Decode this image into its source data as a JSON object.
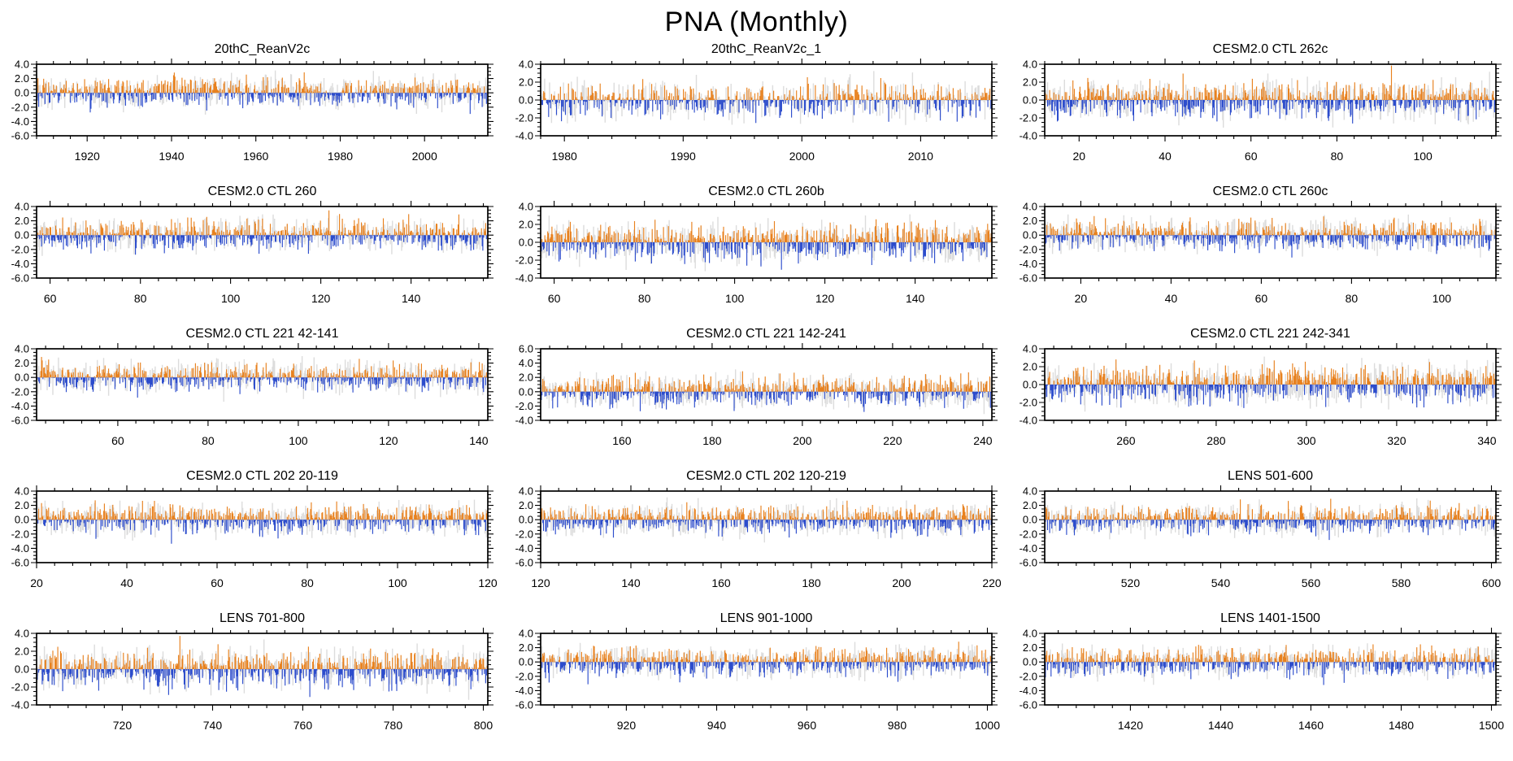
{
  "page_title": "PNA (Monthly)",
  "style": {
    "positive_color": "#e8811e",
    "negative_color": "#2c4ccc",
    "background_bar_color": "#dcdcdc",
    "zero_line_color": "#a6a6a6",
    "frame_color": "#000000",
    "text_color": "#000000"
  },
  "chart_data": [
    {
      "type": "bar",
      "title": "20thC_ReanV2c",
      "xmin": 1908,
      "xmax": 2015,
      "xticks": [
        1920,
        1940,
        1960,
        1980,
        2000
      ],
      "ymin": -6,
      "ymax": 4,
      "yticks": [
        4.0,
        2.0,
        0.0,
        -2.0,
        -4.0,
        -6.0
      ],
      "seed": 3
    },
    {
      "type": "bar",
      "title": "20thC_ReanV2c_1",
      "xmin": 1978,
      "xmax": 2016,
      "xticks": [
        1980,
        1990,
        2000,
        2010
      ],
      "ymin": -4,
      "ymax": 4,
      "yticks": [
        4.0,
        2.0,
        0.0,
        -2.0,
        -4.0
      ],
      "seed": 7
    },
    {
      "type": "bar",
      "title": "CESM2.0 CTL 262c",
      "xmin": 12,
      "xmax": 117,
      "xticks": [
        20,
        40,
        60,
        80,
        100
      ],
      "ymin": -4,
      "ymax": 4,
      "yticks": [
        4.0,
        2.0,
        0.0,
        -2.0,
        -4.0
      ],
      "seed": 11
    },
    {
      "type": "bar",
      "title": "CESM2.0 CTL 260",
      "xmin": 57,
      "xmax": 157,
      "xticks": [
        60,
        80,
        100,
        120,
        140
      ],
      "ymin": -6,
      "ymax": 4,
      "yticks": [
        4.0,
        2.0,
        0.0,
        -2.0,
        -4.0,
        -6.0
      ],
      "seed": 13
    },
    {
      "type": "bar",
      "title": "CESM2.0 CTL 260b",
      "xmin": 57,
      "xmax": 157,
      "xticks": [
        60,
        80,
        100,
        120,
        140
      ],
      "ymin": -4,
      "ymax": 4,
      "yticks": [
        4.0,
        2.0,
        0.0,
        -2.0,
        -4.0
      ],
      "seed": 17
    },
    {
      "type": "bar",
      "title": "CESM2.0 CTL 260c",
      "xmin": 12,
      "xmax": 112,
      "xticks": [
        20,
        40,
        60,
        80,
        100
      ],
      "ymin": -6,
      "ymax": 4,
      "yticks": [
        4.0,
        2.0,
        0.0,
        -2.0,
        -4.0,
        -6.0
      ],
      "seed": 19
    },
    {
      "type": "bar",
      "title": "CESM2.0 CTL 221 42-141",
      "xmin": 42,
      "xmax": 142,
      "xticks": [
        60,
        80,
        100,
        120,
        140
      ],
      "ymin": -6,
      "ymax": 4,
      "yticks": [
        4.0,
        2.0,
        0.0,
        -2.0,
        -4.0,
        -6.0
      ],
      "seed": 23
    },
    {
      "type": "bar",
      "title": "CESM2.0 CTL 221 142-241",
      "xmin": 142,
      "xmax": 242,
      "xticks": [
        160,
        180,
        200,
        220,
        240
      ],
      "ymin": -4,
      "ymax": 6,
      "yticks": [
        6.0,
        4.0,
        2.0,
        0.0,
        -2.0,
        -4.0
      ],
      "seed": 29
    },
    {
      "type": "bar",
      "title": "CESM2.0 CTL 221 242-341",
      "xmin": 242,
      "xmax": 342,
      "xticks": [
        260,
        280,
        300,
        320,
        340
      ],
      "ymin": -4,
      "ymax": 4,
      "yticks": [
        4.0,
        2.0,
        0.0,
        -2.0,
        -4.0
      ],
      "seed": 31
    },
    {
      "type": "bar",
      "title": "CESM2.0 CTL 202 20-119",
      "xmin": 20,
      "xmax": 120,
      "xticks": [
        20,
        40,
        60,
        80,
        100,
        120
      ],
      "ymin": -6,
      "ymax": 4,
      "yticks": [
        4.0,
        2.0,
        0.0,
        -2.0,
        -4.0,
        -6.0
      ],
      "seed": 37
    },
    {
      "type": "bar",
      "title": "CESM2.0 CTL 202 120-219",
      "xmin": 120,
      "xmax": 220,
      "xticks": [
        120,
        140,
        160,
        180,
        200,
        220
      ],
      "ymin": -6,
      "ymax": 4,
      "yticks": [
        4.0,
        2.0,
        0.0,
        -2.0,
        -4.0,
        -6.0
      ],
      "seed": 41
    },
    {
      "type": "bar",
      "title": "LENS 501-600",
      "xmin": 501,
      "xmax": 601,
      "xticks": [
        520,
        540,
        560,
        580,
        600
      ],
      "ymin": -6,
      "ymax": 4,
      "yticks": [
        4.0,
        2.0,
        0.0,
        -2.0,
        -4.0,
        -6.0
      ],
      "seed": 43
    },
    {
      "type": "bar",
      "title": "LENS 701-800",
      "xmin": 701,
      "xmax": 801,
      "xticks": [
        720,
        740,
        760,
        780,
        800
      ],
      "ymin": -4,
      "ymax": 4,
      "yticks": [
        4.0,
        2.0,
        0.0,
        -2.0,
        -4.0
      ],
      "seed": 47
    },
    {
      "type": "bar",
      "title": "LENS 901-1000",
      "xmin": 901,
      "xmax": 1001,
      "xticks": [
        920,
        940,
        960,
        980,
        1000
      ],
      "ymin": -6,
      "ymax": 4,
      "yticks": [
        4.0,
        2.0,
        0.0,
        -2.0,
        -4.0,
        -6.0
      ],
      "seed": 53
    },
    {
      "type": "bar",
      "title": "LENS 1401-1500",
      "xmin": 1401,
      "xmax": 1501,
      "xticks": [
        1420,
        1440,
        1460,
        1480,
        1500
      ],
      "ymin": -6,
      "ymax": 4,
      "yticks": [
        4.0,
        2.0,
        0.0,
        -2.0,
        -4.0,
        -6.0
      ],
      "seed": 59
    }
  ]
}
